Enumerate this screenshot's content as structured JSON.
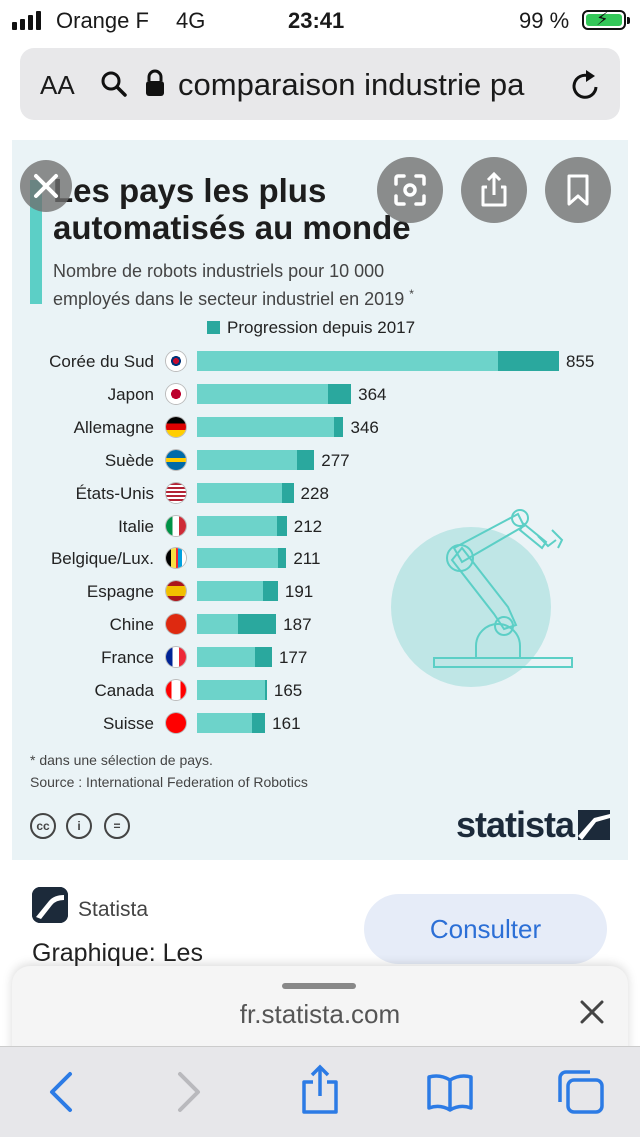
{
  "status_bar": {
    "carrier": "Orange F",
    "network": "4G",
    "time": "23:41",
    "battery": "99 %",
    "battery_color": "#34c759"
  },
  "url_bar": {
    "text_size_label": "AA",
    "url": "comparaison industrie pa",
    "icons": [
      "search-icon",
      "lock-icon",
      "reload-icon"
    ]
  },
  "chart": {
    "title_line1": "Les pays les plus",
    "title_line2": "automatisés au monde",
    "subtitle_line1": "Nombre de robots industriels pour 10 000",
    "subtitle_line2": "employés dans le secteur industriel en 2019",
    "subtitle_mark": "*",
    "legend": "Progression depuis 2017",
    "footnote": "* dans une sélection de pays.",
    "source": "Source : International Federation of Robotics",
    "license_icons": [
      "cc-icon",
      "by-icon",
      "nd-icon"
    ],
    "brand": "statista",
    "colors": {
      "base": "#6dd3ca",
      "progression": "#2aa89e",
      "background": "#eaf3f6",
      "accent": "#5ccfc6"
    }
  },
  "chart_data": {
    "type": "bar",
    "orientation": "horizontal",
    "title": "Les pays les plus automatisés au monde",
    "subtitle": "Nombre de robots industriels pour 10 000 employés dans le secteur industriel en 2019 *",
    "categories": [
      "Corée du Sud",
      "Japon",
      "Allemagne",
      "Suède",
      "États-Unis",
      "Italie",
      "Belgique/Lux.",
      "Espagne",
      "Chine",
      "France",
      "Canada",
      "Suisse"
    ],
    "values": [
      855,
      364,
      346,
      277,
      228,
      212,
      211,
      191,
      187,
      177,
      165,
      161
    ],
    "series": [
      {
        "name": "Progression depuis 2017",
        "values": [
          145,
          55,
          22,
          40,
          28,
          22,
          20,
          35,
          90,
          40,
          5,
          30
        ]
      }
    ],
    "legend_position": "top",
    "grid": false
  },
  "overlay": {
    "close_icon": "close-icon",
    "buttons": [
      "visual-lookup-icon",
      "share-icon",
      "bookmark-icon"
    ]
  },
  "result": {
    "source_name": "Statista",
    "title": "Graphique: Les",
    "action": "Consulter"
  },
  "sheet": {
    "domain": "fr.statista.com"
  },
  "toolbar": {
    "items": [
      "back-icon",
      "forward-icon",
      "share-icon",
      "bookmarks-icon",
      "tabs-icon"
    ],
    "accent": "#2c7be5"
  }
}
